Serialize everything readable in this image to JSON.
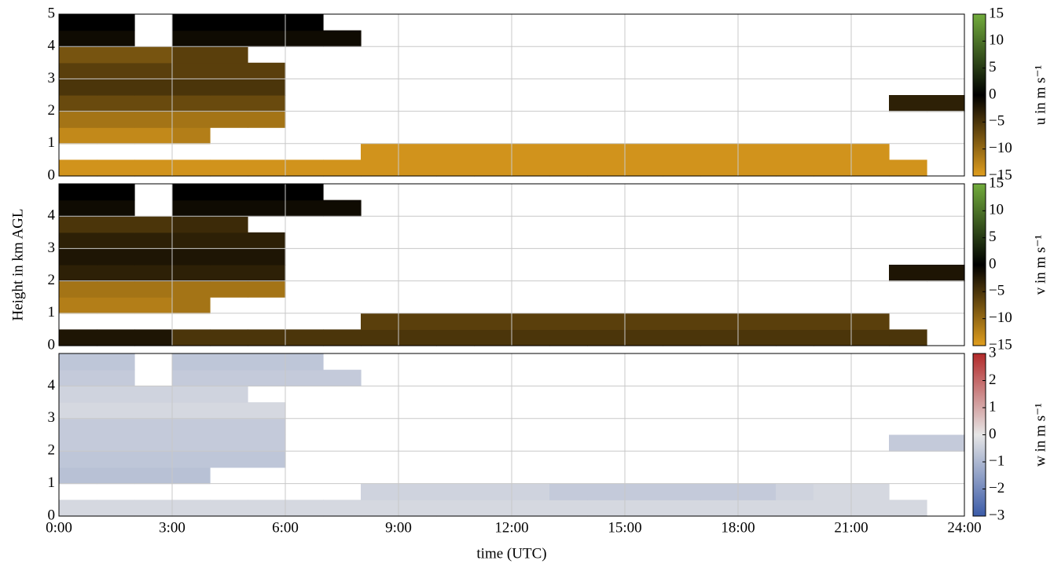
{
  "chart_data": [
    {
      "type": "heatmap",
      "colorbar_label": "u in m s⁻¹",
      "xbins": [
        0,
        1,
        2,
        3,
        4,
        5,
        6,
        7,
        8,
        9,
        10,
        11,
        12,
        13,
        14,
        15,
        16,
        17,
        18,
        19,
        20,
        21,
        22,
        23,
        24
      ],
      "ybins": [
        0,
        0.5,
        1,
        1.5,
        2,
        2.5,
        3,
        3.5,
        4,
        4.5,
        5
      ],
      "ylim": [
        0,
        5
      ],
      "yticks": [
        0,
        1,
        2,
        3,
        4,
        5
      ],
      "grid": true,
      "clim": [
        -15,
        15
      ],
      "cmap": [
        "#e09e1e",
        "#000000",
        "#72ac3c"
      ],
      "cticks": [
        15,
        10,
        5,
        0,
        {
          "value": -5,
          "label": "−5"
        },
        {
          "value": -10,
          "label": "−10"
        },
        {
          "value": -15,
          "label": "−15"
        }
      ],
      "z": [
        [
          -14,
          -14,
          -14,
          -14,
          -14,
          -14,
          -14,
          -14,
          -14,
          -14,
          -14,
          -14,
          -14,
          -14,
          -14,
          -14,
          -14,
          -14,
          -14,
          -14,
          -14,
          -14,
          -14,
          null
        ],
        [
          null,
          null,
          null,
          null,
          null,
          null,
          null,
          null,
          -14,
          -14,
          -14,
          -14,
          -14,
          -14,
          -14,
          -14,
          -14,
          -14,
          -14,
          -14,
          -14,
          -14,
          null,
          null
        ],
        [
          -13,
          -13,
          -13,
          -12,
          null,
          null,
          null,
          null,
          null,
          null,
          null,
          null,
          null,
          null,
          null,
          null,
          null,
          null,
          null,
          null,
          null,
          null,
          null,
          null
        ],
        [
          -11,
          -11,
          -11,
          -11,
          -11,
          -11,
          null,
          null,
          null,
          null,
          null,
          null,
          null,
          null,
          null,
          null,
          null,
          null,
          null,
          null,
          null,
          null,
          null,
          null
        ],
        [
          -7,
          -7,
          -7,
          -7,
          -7,
          -7,
          null,
          null,
          null,
          null,
          null,
          null,
          null,
          null,
          null,
          null,
          null,
          null,
          null,
          null,
          null,
          null,
          -3,
          -3
        ],
        [
          -5,
          -5,
          -5,
          -5,
          -5,
          -5,
          null,
          null,
          null,
          null,
          null,
          null,
          null,
          null,
          null,
          null,
          null,
          null,
          null,
          null,
          null,
          null,
          null,
          null
        ],
        [
          -6,
          -6,
          -6,
          -6,
          -6,
          -6,
          null,
          null,
          null,
          null,
          null,
          null,
          null,
          null,
          null,
          null,
          null,
          null,
          null,
          null,
          null,
          null,
          null,
          null
        ],
        [
          -8,
          -8,
          -8,
          -6,
          -6,
          null,
          null,
          null,
          null,
          null,
          null,
          null,
          null,
          null,
          null,
          null,
          null,
          null,
          null,
          null,
          null,
          null,
          null,
          null
        ],
        [
          -1,
          -1,
          null,
          -1,
          -1,
          -1,
          -1,
          -1,
          null,
          null,
          null,
          null,
          null,
          null,
          null,
          null,
          null,
          null,
          null,
          null,
          null,
          null,
          null,
          null
        ],
        [
          0,
          0,
          null,
          0,
          0,
          0,
          0,
          null,
          null,
          null,
          null,
          null,
          null,
          null,
          null,
          null,
          null,
          null,
          null,
          null,
          null,
          null,
          null,
          null
        ]
      ]
    },
    {
      "type": "heatmap",
      "colorbar_label": "v in m s⁻¹",
      "ylabel": "Height in km AGL",
      "xbins": [
        0,
        1,
        2,
        3,
        4,
        5,
        6,
        7,
        8,
        9,
        10,
        11,
        12,
        13,
        14,
        15,
        16,
        17,
        18,
        19,
        20,
        21,
        22,
        23,
        24
      ],
      "ybins": [
        0,
        0.5,
        1,
        1.5,
        2,
        2.5,
        3,
        3.5,
        4,
        4.5,
        5
      ],
      "ylim": [
        0,
        5
      ],
      "yticks": [
        0,
        1,
        2,
        3,
        4
      ],
      "grid": true,
      "clim": [
        -15,
        15
      ],
      "cmap": [
        "#e09e1e",
        "#000000",
        "#72ac3c"
      ],
      "cticks": [
        15,
        10,
        5,
        0,
        {
          "value": -5,
          "label": "−5"
        },
        {
          "value": -10,
          "label": "−10"
        },
        {
          "value": -15,
          "label": "−15"
        }
      ],
      "z": [
        [
          -2,
          -2,
          -2,
          -5,
          -5,
          -5,
          -5,
          -5,
          -5,
          -5,
          -5,
          -5,
          -5,
          -5,
          -5,
          -5,
          -5,
          -5,
          -5,
          -5,
          -5,
          -5,
          -5,
          null
        ],
        [
          null,
          null,
          null,
          null,
          null,
          null,
          null,
          null,
          -6,
          -6,
          -6,
          -6,
          -6,
          -6,
          -6,
          -6,
          -6,
          -6,
          -6,
          -6,
          -6,
          -6,
          null,
          null
        ],
        [
          -12,
          -12,
          -12,
          -11,
          null,
          null,
          null,
          null,
          null,
          null,
          null,
          null,
          null,
          null,
          null,
          null,
          null,
          null,
          null,
          null,
          null,
          null,
          null,
          null
        ],
        [
          -11,
          -11,
          -11,
          -11,
          -11,
          -11,
          null,
          null,
          null,
          null,
          null,
          null,
          null,
          null,
          null,
          null,
          null,
          null,
          null,
          null,
          null,
          null,
          null,
          null
        ],
        [
          -3,
          -3,
          -3,
          -3,
          -3,
          -3,
          null,
          null,
          null,
          null,
          null,
          null,
          null,
          null,
          null,
          null,
          null,
          null,
          null,
          null,
          null,
          null,
          -2,
          -2
        ],
        [
          -2,
          -2,
          -2,
          -2,
          -2,
          -2,
          null,
          null,
          null,
          null,
          null,
          null,
          null,
          null,
          null,
          null,
          null,
          null,
          null,
          null,
          null,
          null,
          null,
          null
        ],
        [
          -3,
          -3,
          -3,
          -3,
          -3,
          -3,
          null,
          null,
          null,
          null,
          null,
          null,
          null,
          null,
          null,
          null,
          null,
          null,
          null,
          null,
          null,
          null,
          null,
          null
        ],
        [
          -5,
          -5,
          -5,
          -4,
          -4,
          null,
          null,
          null,
          null,
          null,
          null,
          null,
          null,
          null,
          null,
          null,
          null,
          null,
          null,
          null,
          null,
          null,
          null,
          null
        ],
        [
          -1,
          -1,
          null,
          -1,
          -1,
          -1,
          -1,
          -1,
          null,
          null,
          null,
          null,
          null,
          null,
          null,
          null,
          null,
          null,
          null,
          null,
          null,
          null,
          null,
          null
        ],
        [
          0,
          0,
          null,
          0,
          0,
          0,
          0,
          null,
          null,
          null,
          null,
          null,
          null,
          null,
          null,
          null,
          null,
          null,
          null,
          null,
          null,
          null,
          null,
          null
        ]
      ]
    },
    {
      "type": "heatmap",
      "colorbar_label": "w in m s⁻¹",
      "xlabel": "time (UTC)",
      "xbins": [
        0,
        1,
        2,
        3,
        4,
        5,
        6,
        7,
        8,
        9,
        10,
        11,
        12,
        13,
        14,
        15,
        16,
        17,
        18,
        19,
        20,
        21,
        22,
        23,
        24
      ],
      "ybins": [
        0,
        0.5,
        1,
        1.5,
        2,
        2.5,
        3,
        3.5,
        4,
        4.5,
        5
      ],
      "xlim": [
        0,
        24
      ],
      "xticks": [
        {
          "value": 0,
          "label": "0:00"
        },
        {
          "value": 3,
          "label": "3:00"
        },
        {
          "value": 6,
          "label": "6:00"
        },
        {
          "value": 9,
          "label": "9:00"
        },
        {
          "value": 12,
          "label": "12:00"
        },
        {
          "value": 15,
          "label": "15:00"
        },
        {
          "value": 18,
          "label": "18:00"
        },
        {
          "value": 21,
          "label": "21:00"
        },
        {
          "value": 24,
          "label": "24:00"
        }
      ],
      "ylim": [
        0,
        5
      ],
      "yticks": [
        0,
        1,
        2,
        3,
        4
      ],
      "grid": true,
      "clim": [
        -3,
        3
      ],
      "cmap": [
        "#3b5ba8",
        "#e6e6e6",
        "#b22a2a"
      ],
      "cticks": [
        3,
        2,
        1,
        0,
        {
          "value": -1,
          "label": "−1"
        },
        {
          "value": -2,
          "label": "−2"
        },
        {
          "value": -3,
          "label": "−3"
        }
      ],
      "z": [
        [
          -0.3,
          -0.3,
          -0.3,
          -0.3,
          -0.3,
          -0.3,
          -0.3,
          -0.3,
          -0.3,
          -0.3,
          -0.3,
          -0.3,
          -0.3,
          -0.3,
          -0.3,
          -0.3,
          -0.3,
          -0.3,
          -0.3,
          -0.3,
          -0.3,
          -0.3,
          -0.3,
          null
        ],
        [
          null,
          null,
          null,
          null,
          null,
          null,
          null,
          null,
          -0.4,
          -0.4,
          -0.4,
          -0.4,
          -0.4,
          -0.6,
          -0.6,
          -0.6,
          -0.6,
          -0.6,
          -0.6,
          -0.4,
          -0.3,
          -0.3,
          null,
          null
        ],
        [
          -0.8,
          -0.8,
          -0.8,
          -0.8,
          null,
          null,
          null,
          null,
          null,
          null,
          null,
          null,
          null,
          null,
          null,
          null,
          null,
          null,
          null,
          null,
          null,
          null,
          null,
          null
        ],
        [
          -0.7,
          -0.7,
          -0.7,
          -0.7,
          -0.7,
          -0.7,
          null,
          null,
          null,
          null,
          null,
          null,
          null,
          null,
          null,
          null,
          null,
          null,
          null,
          null,
          null,
          null,
          null,
          null
        ],
        [
          -0.6,
          -0.6,
          -0.6,
          -0.6,
          -0.6,
          -0.6,
          null,
          null,
          null,
          null,
          null,
          null,
          null,
          null,
          null,
          null,
          null,
          null,
          null,
          null,
          null,
          null,
          -0.6,
          -0.6
        ],
        [
          -0.6,
          -0.6,
          -0.6,
          -0.6,
          -0.6,
          -0.6,
          null,
          null,
          null,
          null,
          null,
          null,
          null,
          null,
          null,
          null,
          null,
          null,
          null,
          null,
          null,
          null,
          null,
          null
        ],
        [
          -0.3,
          -0.3,
          -0.3,
          -0.3,
          -0.3,
          -0.3,
          null,
          null,
          null,
          null,
          null,
          null,
          null,
          null,
          null,
          null,
          null,
          null,
          null,
          null,
          null,
          null,
          null,
          null
        ],
        [
          -0.4,
          -0.4,
          -0.4,
          -0.4,
          -0.4,
          null,
          null,
          null,
          null,
          null,
          null,
          null,
          null,
          null,
          null,
          null,
          null,
          null,
          null,
          null,
          null,
          null,
          null,
          null
        ],
        [
          -0.6,
          -0.6,
          null,
          -0.6,
          -0.6,
          -0.6,
          -0.6,
          -0.6,
          null,
          null,
          null,
          null,
          null,
          null,
          null,
          null,
          null,
          null,
          null,
          null,
          null,
          null,
          null,
          null
        ],
        [
          -0.7,
          -0.7,
          null,
          -0.7,
          -0.7,
          -0.7,
          -0.7,
          null,
          null,
          null,
          null,
          null,
          null,
          null,
          null,
          null,
          null,
          null,
          null,
          null,
          null,
          null,
          null,
          null
        ]
      ]
    }
  ]
}
